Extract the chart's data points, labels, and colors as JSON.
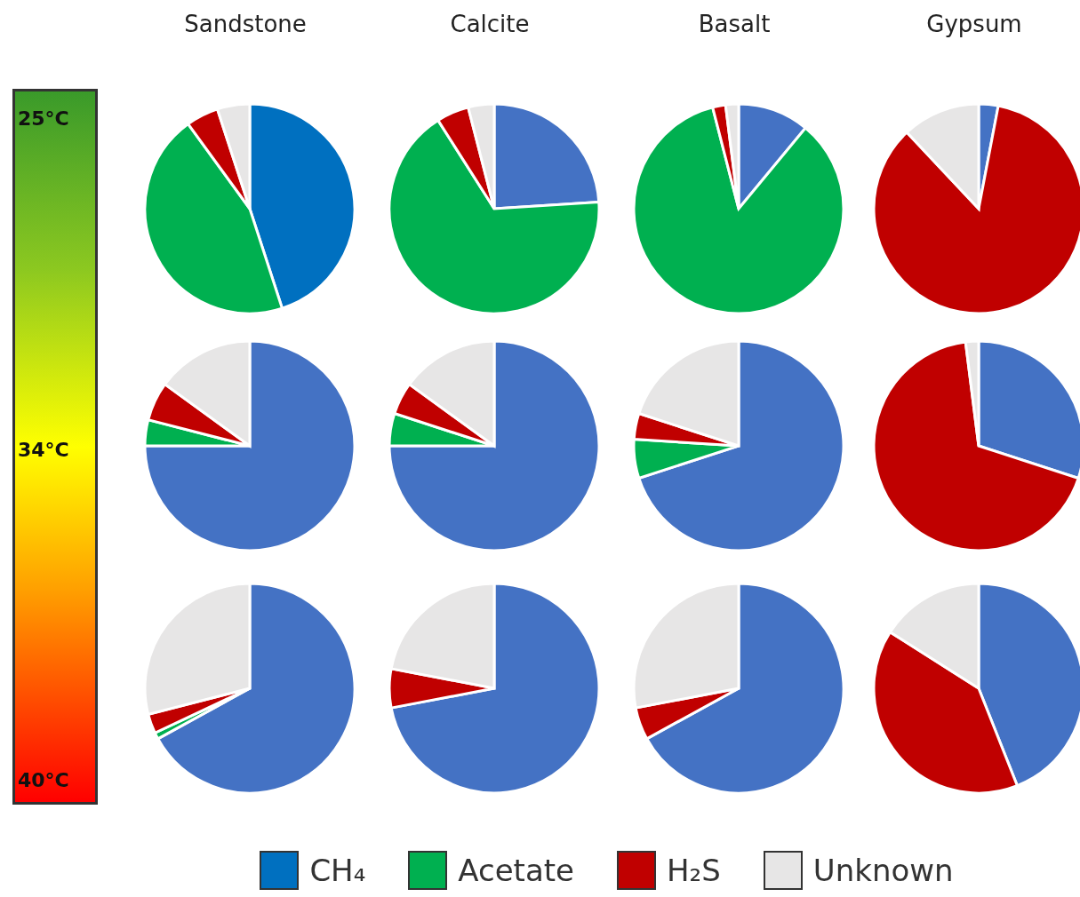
{
  "chart_data": [
    {
      "type": "pie",
      "title": "Sandstone",
      "categories": [
        "CH₄",
        "Acetate",
        "H₂S",
        "Unknown"
      ],
      "values": [
        45,
        45,
        5,
        5
      ],
      "colors": [
        "#0070c0",
        "#00b050",
        "#c00000",
        "#e7e6e6"
      ],
      "legend": "bottom"
    },
    {
      "type": "pie",
      "title": "Calcite",
      "categories": [
        null,
        null,
        null,
        null
      ],
      "values": [
        24,
        67,
        5,
        4
      ],
      "colors": [
        "#4472c4",
        "#00b050",
        "#c00000",
        "#e7e6e6"
      ]
    },
    {
      "type": "pie",
      "title": "Basalt",
      "categories": [
        null,
        null,
        null,
        null
      ],
      "values": [
        11,
        85,
        2,
        2
      ],
      "colors": [
        "#4472c4",
        "#00b050",
        "#c00000",
        "#e7e6e6"
      ]
    },
    {
      "type": "pie",
      "title": "Gypsum",
      "categories": [
        null,
        null,
        null,
        null
      ],
      "values": [
        3,
        0,
        85,
        12
      ],
      "colors": [
        "#4472c4",
        "#00b050",
        "#c00000",
        "#e7e6e6"
      ]
    },
    {
      "type": "pie",
      "categories": [
        null,
        null,
        null,
        null
      ],
      "values": [
        75,
        4,
        6,
        15
      ],
      "colors": [
        "#4472c4",
        "#00b050",
        "#c00000",
        "#e7e6e6"
      ]
    },
    {
      "type": "pie",
      "categories": [
        null,
        null,
        null,
        null
      ],
      "values": [
        75,
        5,
        5,
        15
      ],
      "colors": [
        "#4472c4",
        "#00b050",
        "#c00000",
        "#e7e6e6"
      ]
    },
    {
      "type": "pie",
      "categories": [
        null,
        null,
        null,
        null
      ],
      "values": [
        70,
        6,
        4,
        20
      ],
      "colors": [
        "#4472c4",
        "#00b050",
        "#c00000",
        "#e7e6e6"
      ]
    },
    {
      "type": "pie",
      "categories": [
        null,
        null,
        null,
        null
      ],
      "values": [
        30,
        0,
        68,
        2
      ],
      "colors": [
        "#4472c4",
        "#00b050",
        "#c00000",
        "#e7e6e6"
      ]
    },
    {
      "type": "pie",
      "categories": [
        null,
        null,
        null,
        null
      ],
      "values": [
        67,
        1,
        3,
        29
      ],
      "colors": [
        "#4472c4",
        "#00b050",
        "#c00000",
        "#e7e6e6"
      ]
    },
    {
      "type": "pie",
      "categories": [
        null,
        null,
        null,
        null
      ],
      "values": [
        72,
        0,
        6,
        22
      ],
      "colors": [
        "#4472c4",
        "#00b050",
        "#c00000",
        "#e7e6e6"
      ]
    },
    {
      "type": "pie",
      "categories": [
        null,
        null,
        null,
        null
      ],
      "values": [
        67,
        0,
        5,
        28
      ],
      "colors": [
        "#4472c4",
        "#00b050",
        "#c00000",
        "#e7e6e6"
      ]
    },
    {
      "type": "pie",
      "categories": [
        null,
        null,
        null,
        null
      ],
      "values": [
        44,
        0,
        40,
        16
      ],
      "colors": [
        "#4472c4",
        "#00b050",
        "#c00000",
        "#e7e6e6"
      ]
    },
    {
      "type": "other",
      "annotations": [
        "25°C",
        "34°C",
        "40°C"
      ]
    }
  ]
}
